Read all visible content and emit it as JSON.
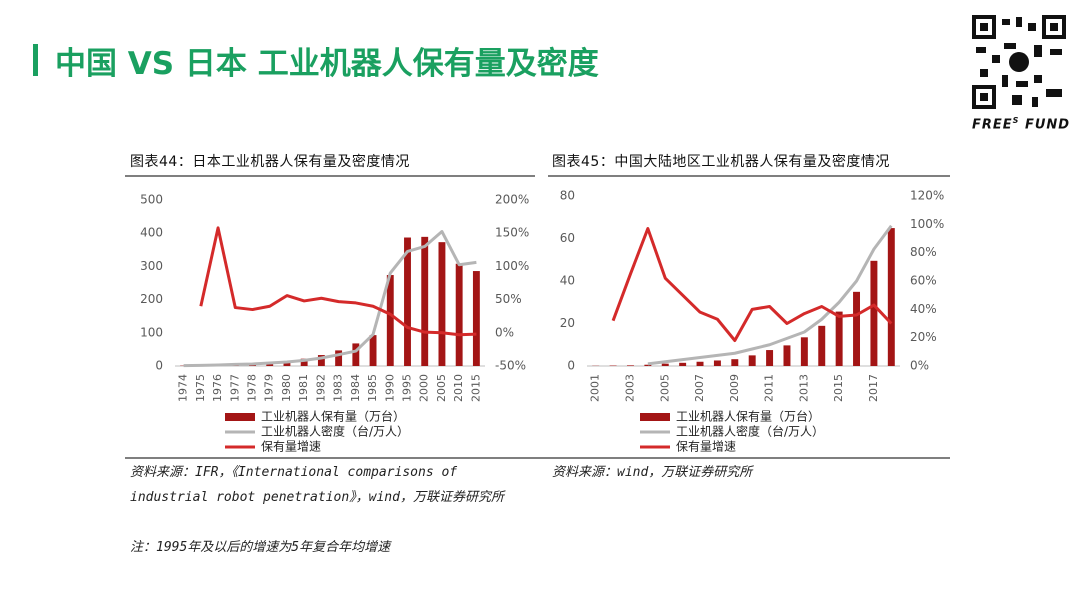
{
  "header": {
    "title": "中国 VS 日本 工业机器人保有量及密度"
  },
  "logo": {
    "text": "FREE",
    "sup": "S",
    "text2": "FUND"
  },
  "chart_data": [
    {
      "type": "combo",
      "title": "图表44：日本工业机器人保有量及密度情况",
      "categories": [
        "1974",
        "1975",
        "1976",
        "1977",
        "1978",
        "1979",
        "1980",
        "1981",
        "1982",
        "1983",
        "1984",
        "1985",
        "1990",
        "1995",
        "2000",
        "2005",
        "2010",
        "2015"
      ],
      "series": [
        {
          "name": "工业机器人保有量（万台）",
          "type": "bar",
          "color": "#a31515",
          "values": [
            1,
            2,
            3,
            5,
            7,
            10,
            15,
            22,
            33,
            47,
            68,
            93,
            274,
            387,
            389,
            373,
            308,
            286
          ]
        },
        {
          "name": "工业机器人密度（台/万人）",
          "type": "line",
          "color": "#b5b5b5",
          "values": [
            1,
            2,
            3,
            5,
            6,
            9,
            12,
            17,
            24,
            34,
            45,
            95,
            280,
            345,
            360,
            405,
            305,
            312
          ]
        },
        {
          "name": "保有量增速",
          "type": "line",
          "color": "#d42a2a",
          "axis": "y2",
          "values": [
            null,
            40,
            158,
            38,
            35,
            40,
            56,
            48,
            52,
            47,
            45,
            40,
            28,
            8,
            1,
            0,
            -3,
            -2
          ]
        }
      ],
      "ylim": [
        0,
        500
      ],
      "yticks": [
        0,
        100,
        200,
        300,
        400,
        500
      ],
      "y2lim": [
        -50,
        200
      ],
      "y2ticks": [
        {
          "value": -50,
          "label": "-50%"
        },
        {
          "value": 0,
          "label": "0%"
        },
        {
          "value": 50,
          "label": "50%"
        },
        {
          "value": 100,
          "label": "100%"
        },
        {
          "value": 150,
          "label": "150%"
        },
        {
          "value": 200,
          "label": "200%"
        }
      ],
      "source": "资料来源：IFR，《International comparisons of industrial robot penetration》，wind，万联证券研究所",
      "note": "注：1995年及以后的增速为5年复合年均增速"
    },
    {
      "type": "combo",
      "title": "图表45：中国大陆地区工业机器人保有量及密度情况",
      "categories": [
        "2001",
        null,
        "2003",
        null,
        "2005",
        null,
        "2007",
        null,
        "2009",
        null,
        "2011",
        null,
        "2013",
        null,
        "2015",
        null,
        "2017",
        null
      ],
      "series": [
        {
          "name": "工业机器人保有量（万台）",
          "type": "bar",
          "color": "#a31515",
          "values": [
            0.1,
            0.2,
            0.3,
            0.6,
            1.1,
            1.5,
            2.0,
            2.6,
            3.2,
            5.0,
            7.5,
            9.7,
            13.5,
            18.9,
            25.6,
            34.9,
            49.5,
            64.9
          ]
        },
        {
          "name": "工业机器人密度（台/万人）",
          "type": "line",
          "color": "#b5b5b5",
          "values": [
            null,
            null,
            null,
            1,
            2,
            3,
            4,
            5,
            6,
            8,
            10,
            13,
            16,
            22,
            30,
            40,
            55,
            66
          ]
        },
        {
          "name": "保有量增速",
          "type": "line",
          "color": "#d42a2a",
          "axis": "y2",
          "values": [
            null,
            32,
            65,
            97,
            62,
            50,
            38,
            33,
            18,
            40,
            42,
            30,
            37,
            42,
            35,
            36,
            43,
            30
          ]
        }
      ],
      "ylim": [
        0,
        80
      ],
      "yticks": [
        0,
        20,
        40,
        60,
        80
      ],
      "y2lim": [
        0,
        120
      ],
      "y2ticks": [
        {
          "value": 0,
          "label": "0%"
        },
        {
          "value": 20,
          "label": "20%"
        },
        {
          "value": 40,
          "label": "40%"
        },
        {
          "value": 60,
          "label": "60%"
        },
        {
          "value": 80,
          "label": "80%"
        },
        {
          "value": 100,
          "label": "100%"
        },
        {
          "value": 120,
          "label": "120%"
        }
      ],
      "source": "资料来源：wind，万联证券研究所"
    }
  ]
}
